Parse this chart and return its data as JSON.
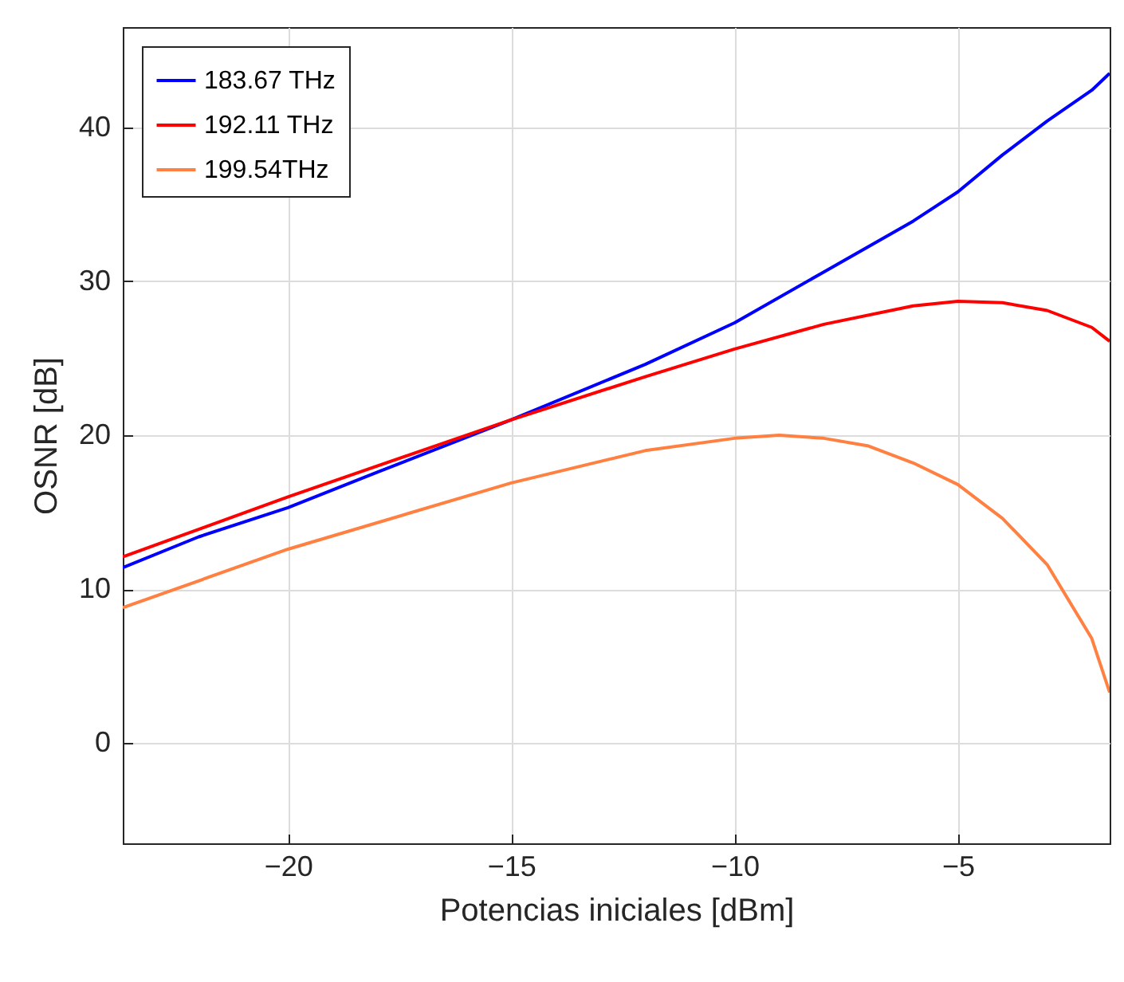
{
  "chart_data": {
    "type": "line",
    "xlabel": "Potencias iniciales [dBm]",
    "ylabel": "OSNR [dB]",
    "xlim": [
      -23.7,
      -1.6
    ],
    "ylim": [
      -6.5,
      46.5
    ],
    "xticks": [
      -20,
      -15,
      -10,
      -5
    ],
    "yticks": [
      0,
      10,
      20,
      30,
      40
    ],
    "grid": true,
    "legend": "top left",
    "line_style": "solid",
    "marker": "none",
    "series": [
      {
        "name": "183.67 THz",
        "color": "#0000ff",
        "x": [
          -23.7,
          -22,
          -20,
          -18,
          -15,
          -12,
          -10,
          -8,
          -6,
          -5,
          -4,
          -3,
          -2,
          -1.6
        ],
        "values": [
          11.4,
          13.4,
          15.3,
          17.6,
          21,
          24.6,
          27.3,
          30.6,
          33.9,
          35.8,
          38.2,
          40.4,
          42.4,
          43.5
        ]
      },
      {
        "name": "192.11 THz",
        "color": "#ff0000",
        "x": [
          -23.7,
          -20,
          -15,
          -12,
          -10,
          -8,
          -6,
          -5,
          -4,
          -3,
          -2,
          -1.6
        ],
        "values": [
          12.1,
          16,
          21,
          23.8,
          25.6,
          27.2,
          28.4,
          28.7,
          28.6,
          28.1,
          27,
          26.1
        ]
      },
      {
        "name": "199.54THz",
        "color": "#ff8040",
        "x": [
          -23.7,
          -20,
          -15,
          -12,
          -10,
          -9,
          -8,
          -7,
          -6,
          -5,
          -4,
          -3,
          -2,
          -1.6
        ],
        "values": [
          8.8,
          12.6,
          16.9,
          19,
          19.8,
          20,
          19.8,
          19.3,
          18.2,
          16.8,
          14.6,
          11.6,
          6.8,
          3.3
        ]
      }
    ]
  }
}
